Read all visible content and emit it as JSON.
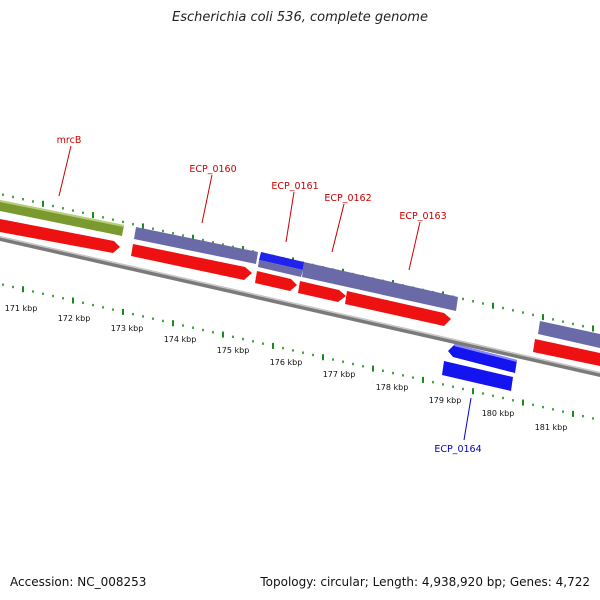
{
  "title": "Escherichia coli 536, complete genome",
  "accession": "Accession: NC_008253",
  "summary": "Topology: circular; Length: 4,938,920 bp; Genes: 4,722",
  "colors": {
    "cds_forward": "#6a6aa8",
    "cds_highlight": "#2222ee",
    "rna_forward": "#ee1111",
    "gene_green": "#7a9a30",
    "backbone": "#7a7a7a",
    "tick": "#1a8a1a",
    "label_red": "#cc0000",
    "label_blue": "#0000cc"
  },
  "kbp_labels": [
    "171 kbp",
    "172 kbp",
    "173 kbp",
    "174 kbp",
    "175 kbp",
    "176 kbp",
    "177 kbp",
    "178 kbp",
    "179 kbp",
    "180 kbp",
    "181 kbp"
  ],
  "genes": [
    {
      "name": "mrcB",
      "color": "red"
    },
    {
      "name": "ECP_0160",
      "color": "red"
    },
    {
      "name": "ECP_0161",
      "color": "red"
    },
    {
      "name": "ECP_0162",
      "color": "red"
    },
    {
      "name": "ECP_0163",
      "color": "red"
    },
    {
      "name": "ECP_0164",
      "color": "blue"
    }
  ]
}
